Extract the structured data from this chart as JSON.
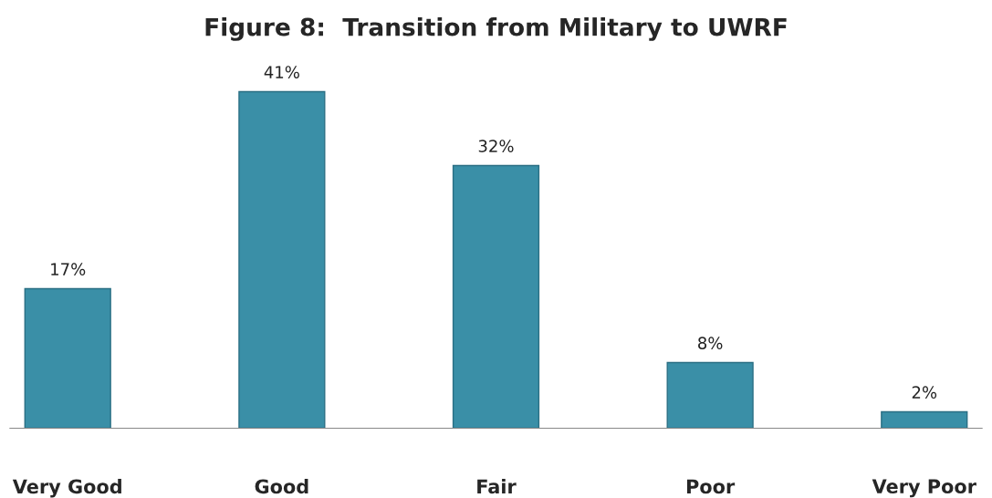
{
  "chart_data": {
    "type": "bar",
    "title": "Figure 8:  Transition from Military to UWRF",
    "categories": [
      "Very Good",
      "Good",
      "Fair",
      "Poor",
      "Very Poor"
    ],
    "values": [
      17,
      41,
      32,
      8,
      2
    ],
    "value_labels": [
      "17%",
      "41%",
      "32%",
      "8%",
      "2%"
    ],
    "color": "#3a8fa7",
    "grid": false,
    "legend": false
  }
}
